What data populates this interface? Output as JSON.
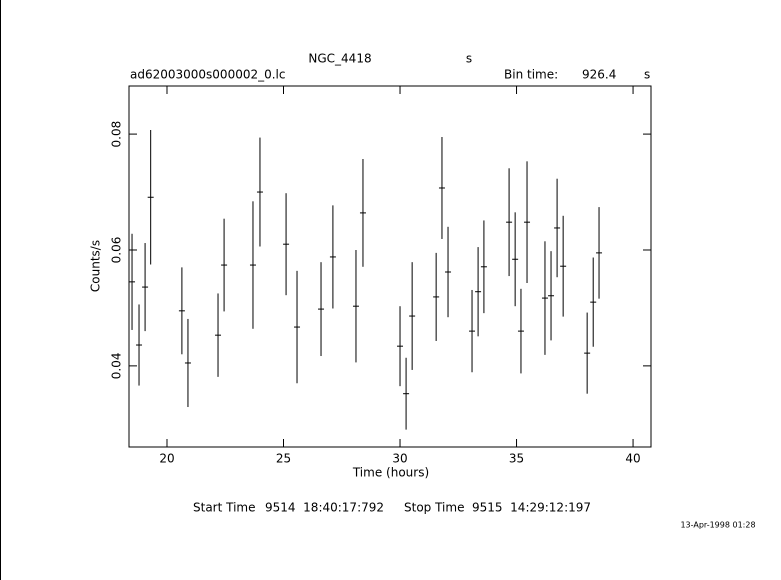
{
  "chart_data": {
    "type": "errorbar",
    "object": "NGC_4418",
    "object_unit": "s",
    "file": "ad62003000s000002_0.lc",
    "bin_label": "Bin time:",
    "bin_value": "926.4",
    "bin_unit": "s",
    "y_label": "Counts/s",
    "x_label": "Time (hours)",
    "start_label": "Start Time",
    "start_value": "9514  18:40:17:792",
    "stop_label": "Stop Time",
    "stop_value": "9515  14:29:12:197",
    "timestamp": "13-Apr-1998 01:28",
    "color": "#000000",
    "xlim": [
      18.37,
      40.77
    ],
    "ylim": [
      0.026,
      0.0883
    ],
    "xticks": [
      20,
      25,
      30,
      35,
      40
    ],
    "yticks": [
      0.04,
      0.06,
      0.08
    ],
    "x": [
      18.5,
      18.8,
      19.06,
      19.3,
      20.64,
      20.9,
      22.19,
      22.45,
      23.69,
      23.99,
      25.11,
      25.58,
      26.61,
      27.12,
      28.11,
      28.41,
      30.0,
      30.26,
      30.52,
      31.55,
      31.8,
      32.06,
      33.09,
      33.35,
      33.6,
      34.68,
      34.94,
      35.19,
      35.45,
      36.22,
      36.48,
      36.74,
      37.0,
      38.03,
      38.29,
      38.54
    ],
    "values": [
      0.0545,
      0.0436,
      0.0536,
      0.0691,
      0.0495,
      0.0405,
      0.0453,
      0.0574,
      0.0574,
      0.07,
      0.061,
      0.0467,
      0.0498,
      0.0588,
      0.0503,
      0.0664,
      0.0434,
      0.0352,
      0.0486,
      0.0519,
      0.0707,
      0.0562,
      0.046,
      0.0528,
      0.0571,
      0.0648,
      0.0584,
      0.046,
      0.0648,
      0.0517,
      0.0521,
      0.0638,
      0.0572,
      0.0422,
      0.051,
      0.0595
    ],
    "errors": [
      0.0083,
      0.007,
      0.0076,
      0.0116,
      0.0075,
      0.0076,
      0.0072,
      0.008,
      0.011,
      0.0094,
      0.0088,
      0.0097,
      0.0081,
      0.0089,
      0.0097,
      0.0093,
      0.0069,
      0.0062,
      0.0093,
      0.0076,
      0.0088,
      0.0078,
      0.0071,
      0.0077,
      0.008,
      0.0093,
      0.0081,
      0.0073,
      0.0105,
      0.0098,
      0.0077,
      0.0085,
      0.0087,
      0.007,
      0.0077,
      0.0079
    ]
  }
}
